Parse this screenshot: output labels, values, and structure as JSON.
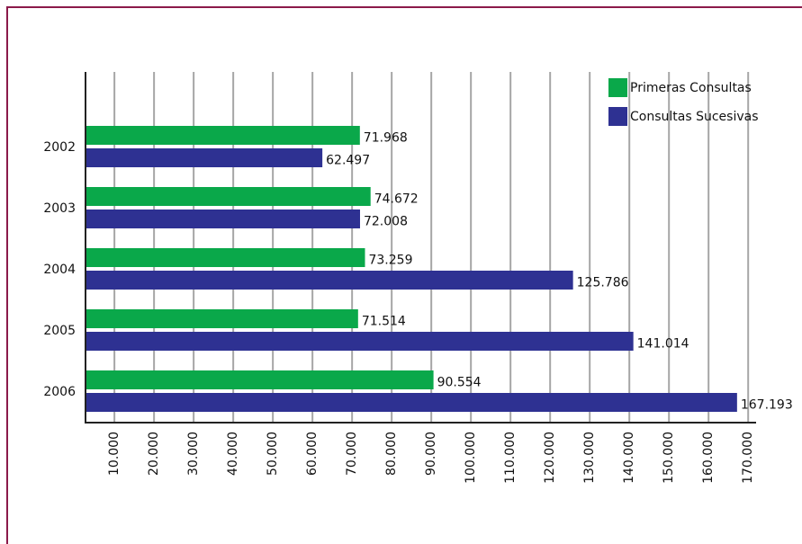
{
  "chart_data": {
    "type": "hbar",
    "categories": [
      "2002",
      "2003",
      "2004",
      "2005",
      "2006"
    ],
    "series": [
      {
        "name": "Primeras Consultas",
        "color": "#0aa84a",
        "values": [
          71968,
          74672,
          73259,
          71514,
          90554
        ],
        "value_labels": [
          "71.968",
          "74.672",
          "73.259",
          "71.514",
          "90.554"
        ]
      },
      {
        "name": "Consultas Sucesivas",
        "color": "#2e3192",
        "values": [
          62497,
          72008,
          125786,
          141014,
          167193
        ],
        "value_labels": [
          "62.497",
          "72.008",
          "125.786",
          "141.014",
          "167.193"
        ]
      }
    ],
    "xlim": [
      2700,
      172000
    ],
    "xticks": [
      {
        "value": 10000,
        "label": "10.000"
      },
      {
        "value": 20000,
        "label": "20.000"
      },
      {
        "value": 30000,
        "label": "30.000"
      },
      {
        "value": 40000,
        "label": "40.000"
      },
      {
        "value": 50000,
        "label": "50.000"
      },
      {
        "value": 60000,
        "label": "60.000"
      },
      {
        "value": 70000,
        "label": "70.000"
      },
      {
        "value": 80000,
        "label": "80.000"
      },
      {
        "value": 90000,
        "label": "90.000"
      },
      {
        "value": 100000,
        "label": "100.000"
      },
      {
        "value": 110000,
        "label": "110.000"
      },
      {
        "value": 120000,
        "label": "120.000"
      },
      {
        "value": 130000,
        "label": "130.000"
      },
      {
        "value": 140000,
        "label": "140.000"
      },
      {
        "value": 150000,
        "label": "150.000"
      },
      {
        "value": 160000,
        "label": "160.000"
      },
      {
        "value": 170000,
        "label": "170.000"
      }
    ],
    "grid": true,
    "legend": "top-right"
  }
}
